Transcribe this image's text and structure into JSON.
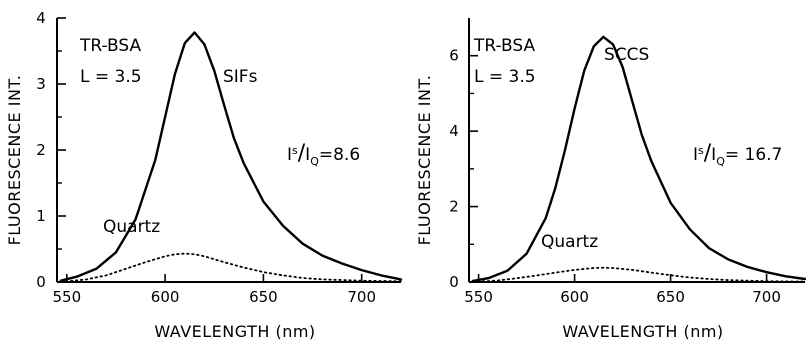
{
  "chart_data": [
    {
      "type": "line",
      "xlabel": "WAVELENGTH (nm)",
      "ylabel": "FLUORESCENCE INT.",
      "xlim": [
        545,
        720
      ],
      "ylim": [
        0,
        4
      ],
      "xticks": [
        550,
        600,
        650,
        700
      ],
      "xtick_labels": [
        "550",
        "600",
        "650",
        "700"
      ],
      "yticks": [
        0,
        1,
        2,
        3,
        4
      ],
      "ytick_labels": [
        "0",
        "1",
        "2",
        "3",
        "4"
      ],
      "y_minor_ticks": [
        0.5,
        1.5,
        2.5,
        3.5
      ],
      "grid": false,
      "annotations": {
        "sample": "TR-BSA",
        "loading": "L = 3.5",
        "surface": "SIFs",
        "reference": "Quartz",
        "ratio_I": "I",
        "ratio_s": "s",
        "ratio_slash": "/",
        "ratio_Q": "Q",
        "ratio_value": "=8.6"
      },
      "series": [
        {
          "style": "solid",
          "x": [
            547,
            555,
            565,
            575,
            585,
            595,
            600,
            605,
            610,
            615,
            620,
            625,
            630,
            635,
            640,
            650,
            660,
            670,
            680,
            690,
            700,
            710,
            720
          ],
          "y": [
            0.02,
            0.08,
            0.2,
            0.45,
            0.95,
            1.85,
            2.5,
            3.15,
            3.62,
            3.78,
            3.6,
            3.2,
            2.68,
            2.18,
            1.8,
            1.22,
            0.85,
            0.58,
            0.4,
            0.28,
            0.18,
            0.1,
            0.04
          ]
        },
        {
          "name": "Quartz",
          "style": "dotted",
          "x": [
            547,
            560,
            570,
            580,
            590,
            600,
            605,
            610,
            615,
            620,
            630,
            640,
            650,
            660,
            670,
            680,
            700,
            720
          ],
          "y": [
            0.0,
            0.04,
            0.1,
            0.2,
            0.3,
            0.39,
            0.42,
            0.43,
            0.42,
            0.39,
            0.3,
            0.22,
            0.15,
            0.1,
            0.06,
            0.04,
            0.02,
            0.01
          ]
        }
      ]
    },
    {
      "type": "line",
      "xlabel": "WAVELENGTH (nm)",
      "ylabel": "FLUORESCENCE INT.",
      "xlim": [
        545,
        720
      ],
      "ylim": [
        0,
        7
      ],
      "xticks": [
        550,
        600,
        650,
        700
      ],
      "xtick_labels": [
        "550",
        "600",
        "650",
        "700"
      ],
      "yticks": [
        0,
        2,
        4,
        6
      ],
      "ytick_labels": [
        "0",
        "2",
        "4",
        "6"
      ],
      "y_minor_ticks": [
        1,
        3,
        5
      ],
      "grid": false,
      "annotations": {
        "sample": "TR-BSA",
        "loading": "L = 3.5",
        "surface": "SCCS",
        "reference": "Quartz",
        "ratio_I": "I",
        "ratio_s": "s",
        "ratio_slash": "/",
        "ratio_Q": "Q",
        "ratio_value": "= 16.7"
      },
      "series": [
        {
          "style": "solid",
          "x": [
            547,
            555,
            565,
            575,
            585,
            590,
            595,
            600,
            605,
            610,
            615,
            620,
            625,
            630,
            635,
            640,
            650,
            660,
            670,
            680,
            690,
            700,
            710,
            720
          ],
          "y": [
            0.03,
            0.1,
            0.3,
            0.75,
            1.7,
            2.5,
            3.5,
            4.6,
            5.6,
            6.25,
            6.5,
            6.3,
            5.7,
            4.8,
            3.9,
            3.2,
            2.1,
            1.4,
            0.9,
            0.6,
            0.4,
            0.26,
            0.15,
            0.08
          ]
        },
        {
          "name": "Quartz",
          "style": "dotted",
          "x": [
            547,
            560,
            570,
            580,
            590,
            600,
            610,
            615,
            620,
            630,
            640,
            650,
            660,
            670,
            680,
            700,
            720
          ],
          "y": [
            0.0,
            0.04,
            0.1,
            0.17,
            0.25,
            0.32,
            0.37,
            0.38,
            0.37,
            0.32,
            0.25,
            0.18,
            0.12,
            0.08,
            0.05,
            0.02,
            0.01
          ]
        }
      ]
    }
  ]
}
